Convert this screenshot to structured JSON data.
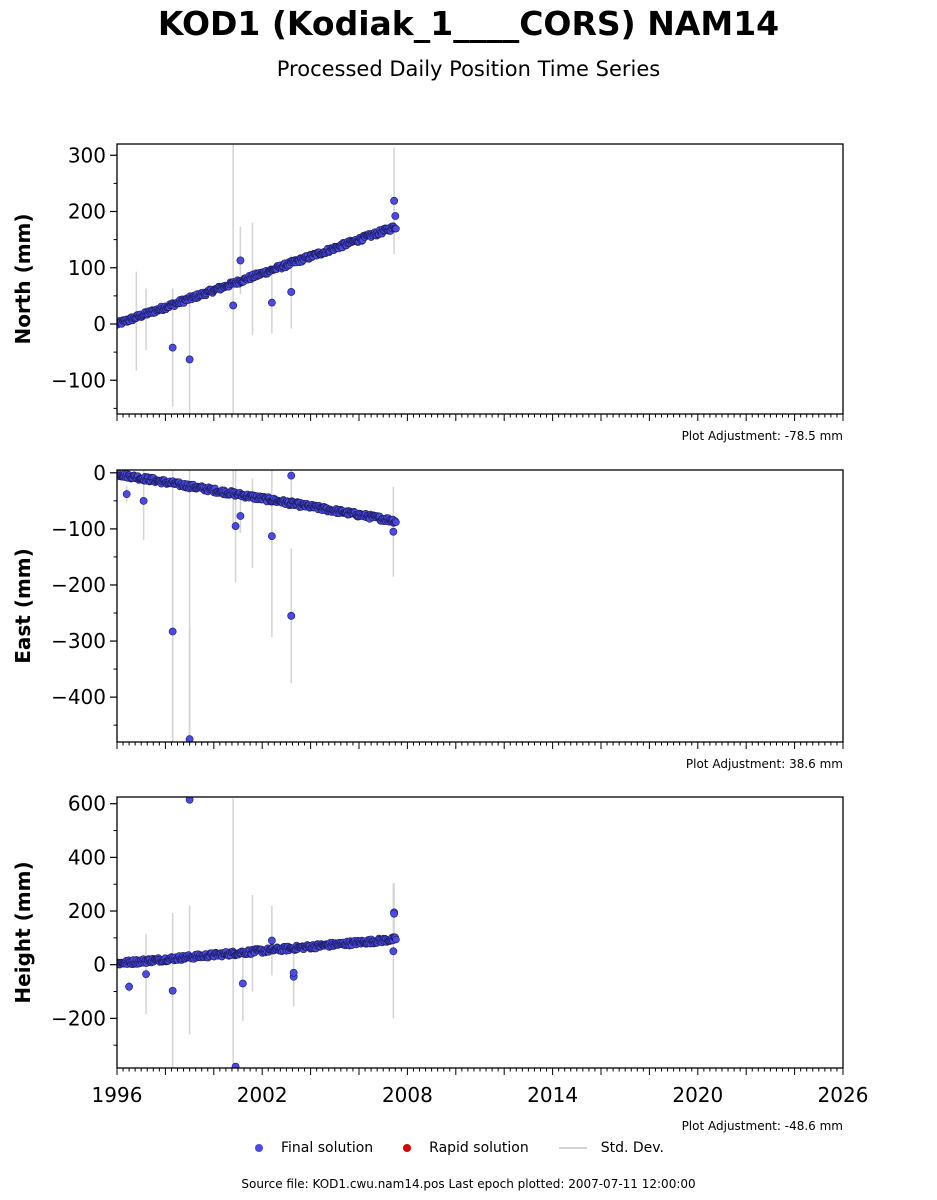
{
  "title": "KOD1 (Kodiak_1____CORS) NAM14",
  "subtitle": "Processed Daily Position Time Series",
  "legend": {
    "final": "Final solution",
    "rapid": "Rapid solution",
    "std": "Std. Dev."
  },
  "colors": {
    "final": "#4a4ae6",
    "final_edge": "#1a1a55",
    "rapid": "#dd0000",
    "std": "#d3d3d3"
  },
  "source_text": "Source file: KOD1.cwu.nam14.pos  Last epoch plotted: 2007-07-11 12:00:00",
  "chart_data": [
    {
      "type": "scatter",
      "ylabel": "North (mm)",
      "adjustment": "Plot Adjustment: -78.5 mm",
      "xlim": [
        1996,
        2026
      ],
      "ylim": [
        -160,
        320
      ],
      "yticks": [
        -100,
        0,
        100,
        200,
        300
      ],
      "trend": {
        "x": [
          1996.0,
          2007.53
        ],
        "y": [
          0,
          173
        ]
      },
      "outliers": [
        {
          "x": 1998.3,
          "y": -42,
          "err": 105
        },
        {
          "x": 1999.0,
          "y": -63,
          "err": 100
        },
        {
          "x": 2000.8,
          "y": 33,
          "err": 290
        },
        {
          "x": 2001.1,
          "y": 113,
          "err": 60
        },
        {
          "x": 2002.4,
          "y": 38,
          "err": 55
        },
        {
          "x": 2003.2,
          "y": 57,
          "err": 65
        },
        {
          "x": 2007.45,
          "y": 219,
          "err": 95
        },
        {
          "x": 2007.5,
          "y": 192,
          "err": 0
        }
      ],
      "error_bars": [
        {
          "x": 1996.8,
          "y": 5,
          "err": 88
        },
        {
          "x": 1997.2,
          "y": 8,
          "err": 55
        },
        {
          "x": 2001.6,
          "y": 80,
          "err": 100
        }
      ]
    },
    {
      "type": "scatter",
      "ylabel": "East (mm)",
      "adjustment": "Plot Adjustment: 38.6 mm",
      "xlim": [
        1996,
        2026
      ],
      "ylim": [
        -480,
        5
      ],
      "yticks": [
        -400,
        -300,
        -200,
        -100,
        0
      ],
      "trend": {
        "x": [
          1996.0,
          2007.53
        ],
        "y": [
          -2,
          -86
        ]
      },
      "outliers": [
        {
          "x": 1996.4,
          "y": -38,
          "err": 15
        },
        {
          "x": 1997.1,
          "y": -50,
          "err": 70
        },
        {
          "x": 1998.3,
          "y": -283,
          "err": 200
        },
        {
          "x": 1999.0,
          "y": -475,
          "err": 200
        },
        {
          "x": 2000.9,
          "y": -95,
          "err": 100
        },
        {
          "x": 2001.1,
          "y": -77,
          "err": 30
        },
        {
          "x": 2002.4,
          "y": -113,
          "err": 180
        },
        {
          "x": 2003.2,
          "y": -255,
          "err": 120
        },
        {
          "x": 2003.2,
          "y": -5,
          "err": 60
        },
        {
          "x": 2007.42,
          "y": -105,
          "err": 80
        }
      ],
      "error_bars": [
        {
          "x": 1998.3,
          "y": -40,
          "err": 440
        },
        {
          "x": 1999.0,
          "y": -40,
          "err": 430
        },
        {
          "x": 2000.8,
          "y": -30,
          "err": 60
        },
        {
          "x": 2001.6,
          "y": -90,
          "err": 80
        }
      ]
    },
    {
      "type": "scatter",
      "ylabel": "Height (mm)",
      "adjustment": "Plot Adjustment: -48.6 mm",
      "xlim": [
        1996,
        2026
      ],
      "xticks": [
        1996,
        2002,
        2008,
        2014,
        2020,
        2026
      ],
      "ylim": [
        -385,
        625
      ],
      "yticks": [
        -200,
        0,
        200,
        400,
        600
      ],
      "trend": {
        "x": [
          1996.0,
          2007.53
        ],
        "y": [
          5,
          95
        ]
      },
      "outliers": [
        {
          "x": 1996.5,
          "y": -82,
          "err": 20
        },
        {
          "x": 1997.2,
          "y": -35,
          "err": 150
        },
        {
          "x": 1998.3,
          "y": -97,
          "err": 290
        },
        {
          "x": 1999.0,
          "y": 615,
          "err": 0
        },
        {
          "x": 2000.9,
          "y": -380,
          "err": 0
        },
        {
          "x": 2001.2,
          "y": -70,
          "err": 140
        },
        {
          "x": 2002.4,
          "y": 90,
          "err": 130
        },
        {
          "x": 2003.3,
          "y": -45,
          "err": 110
        },
        {
          "x": 2003.3,
          "y": -30,
          "err": 100
        },
        {
          "x": 2007.45,
          "y": 195,
          "err": 110
        },
        {
          "x": 2007.45,
          "y": 190,
          "err": 0
        },
        {
          "x": 2007.42,
          "y": 50,
          "err": 250
        }
      ],
      "error_bars": [
        {
          "x": 1999.0,
          "y": -20,
          "err": 240
        },
        {
          "x": 2000.8,
          "y": 120,
          "err": 500
        },
        {
          "x": 2001.6,
          "y": 80,
          "err": 180
        }
      ]
    }
  ]
}
